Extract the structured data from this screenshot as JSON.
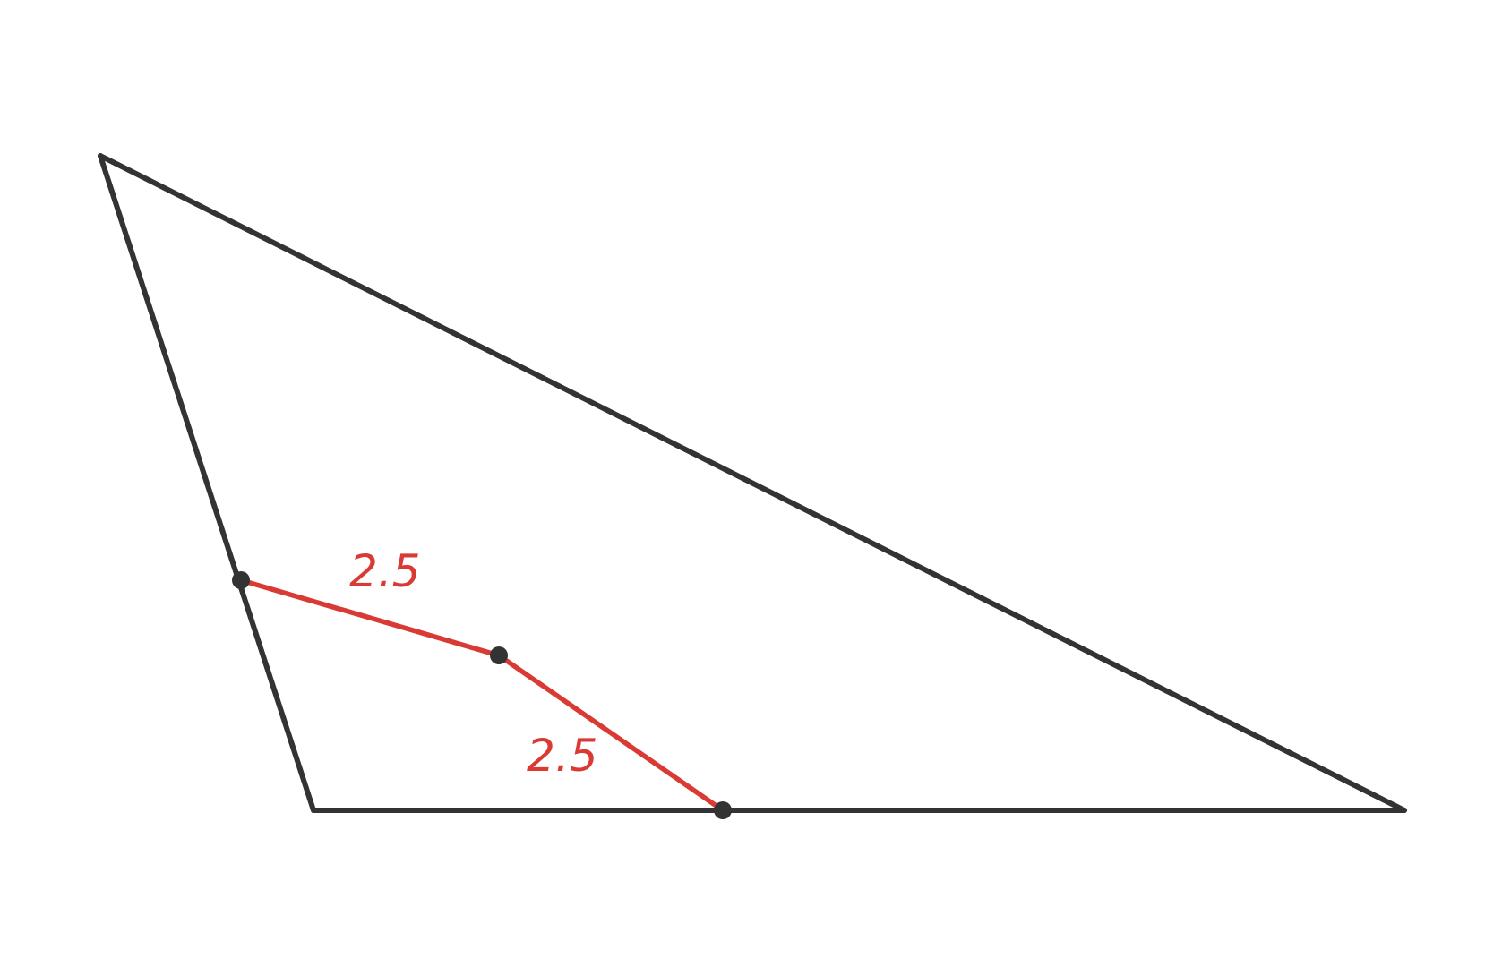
{
  "diagram": {
    "segment_labels": {
      "upper": "2.5",
      "lower": "2.5"
    },
    "colors": {
      "outline": "#333333",
      "highlight": "#d93a33",
      "point": "#333333",
      "background": "#ffffff"
    }
  }
}
